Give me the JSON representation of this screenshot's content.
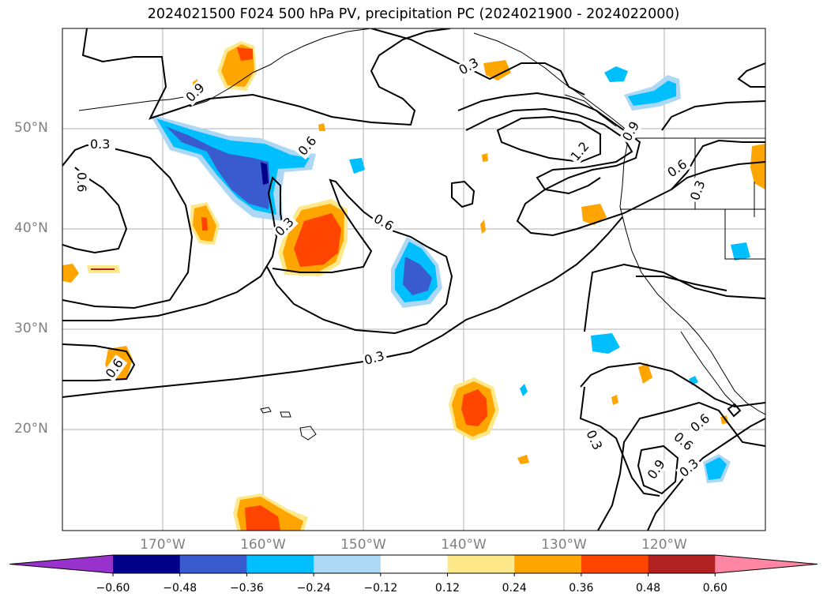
{
  "title": "2024021500 F024 500 hPa PV, precipitation PC (2024021900 - 2024022000)",
  "map": {
    "lat_labels": [
      "50°N",
      "40°N",
      "30°N",
      "20°N"
    ],
    "lon_labels": [
      "170°W",
      "160°W",
      "150°W",
      "140°W",
      "130°W",
      "120°W"
    ],
    "contour_labels": [
      "0.3",
      "0.6",
      "0.9",
      "1.2"
    ]
  },
  "colorbar": {
    "ticks": [
      "−0.60",
      "−0.48",
      "−0.36",
      "−0.24",
      "−0.12",
      "0.12",
      "0.24",
      "0.36",
      "0.48",
      "0.60"
    ],
    "colors": [
      "#9932cc",
      "#00008b",
      "#3a5bcd",
      "#00bfff",
      "#add8f5",
      "#ffffff",
      "#ffe88a",
      "#ffa500",
      "#ff4500",
      "#b22222",
      "#ff85a5"
    ]
  }
}
